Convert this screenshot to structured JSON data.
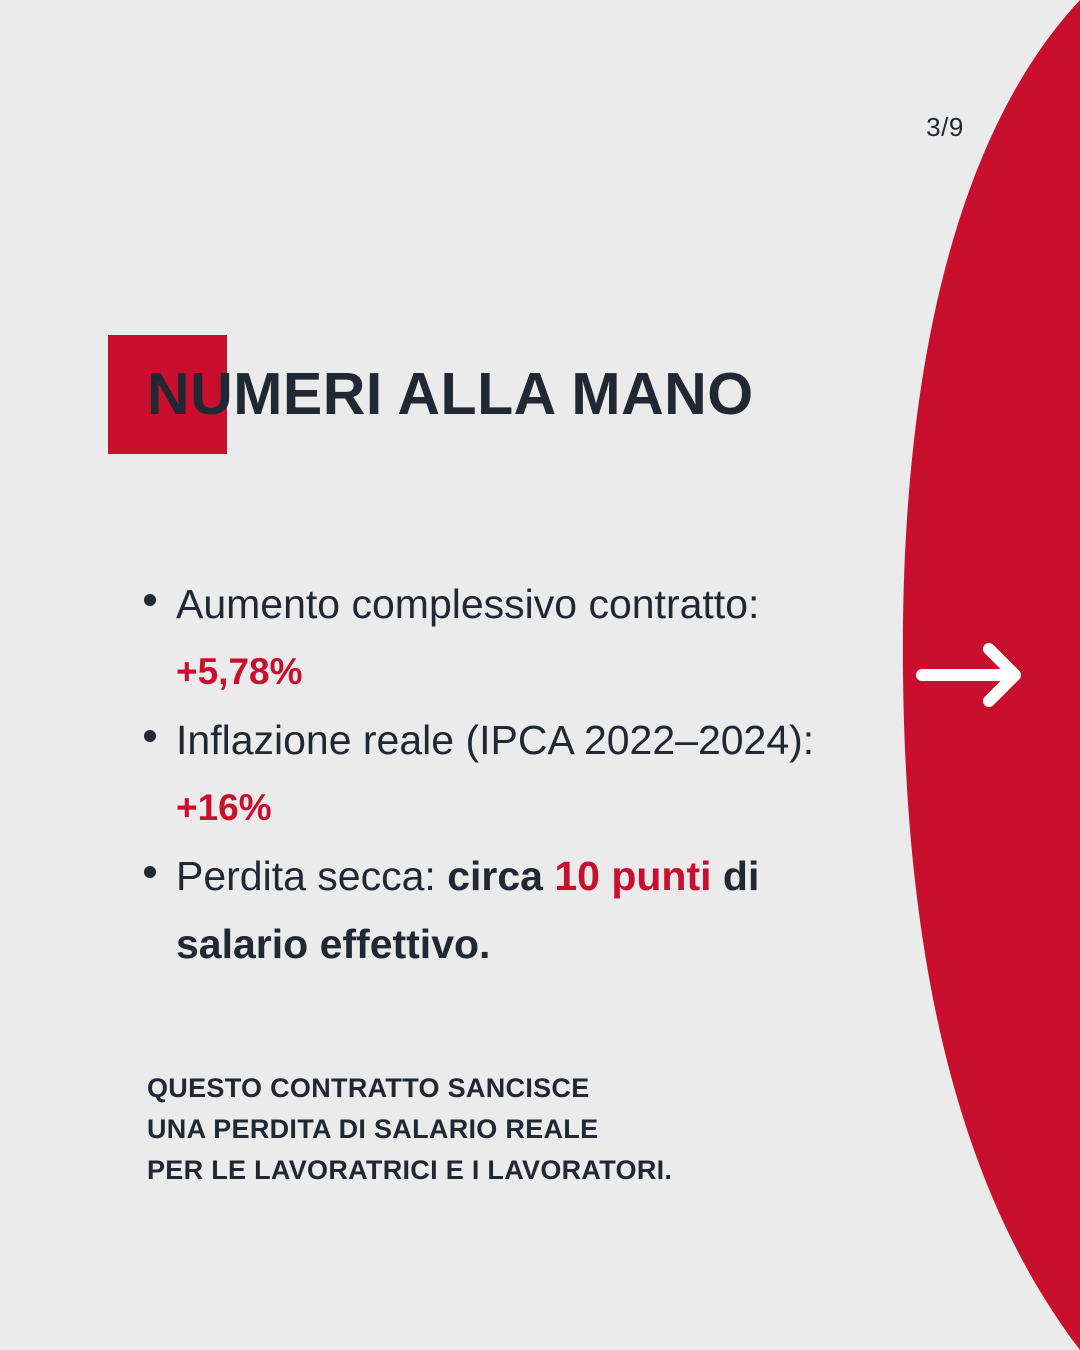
{
  "page_counter": "3/9",
  "title": "NUMERI ALLA MANO",
  "bullets": [
    {
      "label": "Aumento complessivo contratto:",
      "value": "+5,78%"
    },
    {
      "label": "Inflazione reale (IPCA 2022–2024):",
      "value": "+16%"
    },
    {
      "label_prefix": "Perdita secca: ",
      "bold_1": "circa ",
      "highlight": "10 punti",
      "bold_2": " di",
      "bold_3": "salario effettivo."
    }
  ],
  "conclusion": [
    "QUESTO CONTRATTO SANCISCE",
    "UNA PERDITA DI SALARIO REALE",
    "PER LE LAVORATRICI E I LAVORATORI."
  ],
  "icons": {
    "next": "arrow-right-icon"
  },
  "colors": {
    "accent": "#c8102e",
    "text": "#212833",
    "background": "#ebebeb",
    "arrow": "#ffffff"
  }
}
